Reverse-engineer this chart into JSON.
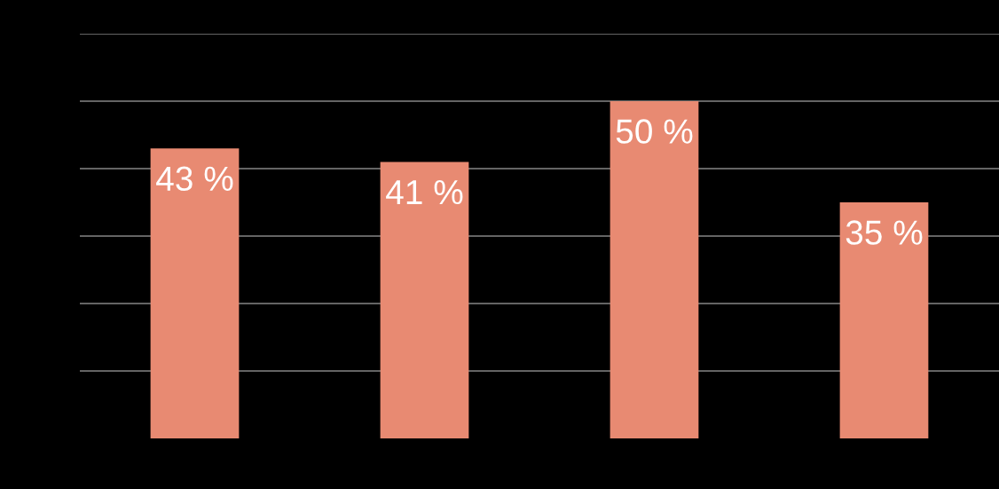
{
  "chart_data": {
    "type": "bar",
    "categories": [
      null,
      null,
      null,
      null
    ],
    "values": [
      43,
      41,
      50,
      35
    ],
    "value_labels": [
      "43 %",
      "41 %",
      "50 %",
      "35 %"
    ],
    "color": "#e88a72",
    "ylim": [
      0,
      60
    ],
    "yticks": [
      {
        "value": 10,
        "label": null
      },
      {
        "value": 20,
        "label": null
      },
      {
        "value": 30,
        "label": null
      },
      {
        "value": 40,
        "label": null
      },
      {
        "value": 50,
        "label": null
      },
      {
        "value": 60,
        "label": null
      }
    ],
    "grid": "y"
  }
}
